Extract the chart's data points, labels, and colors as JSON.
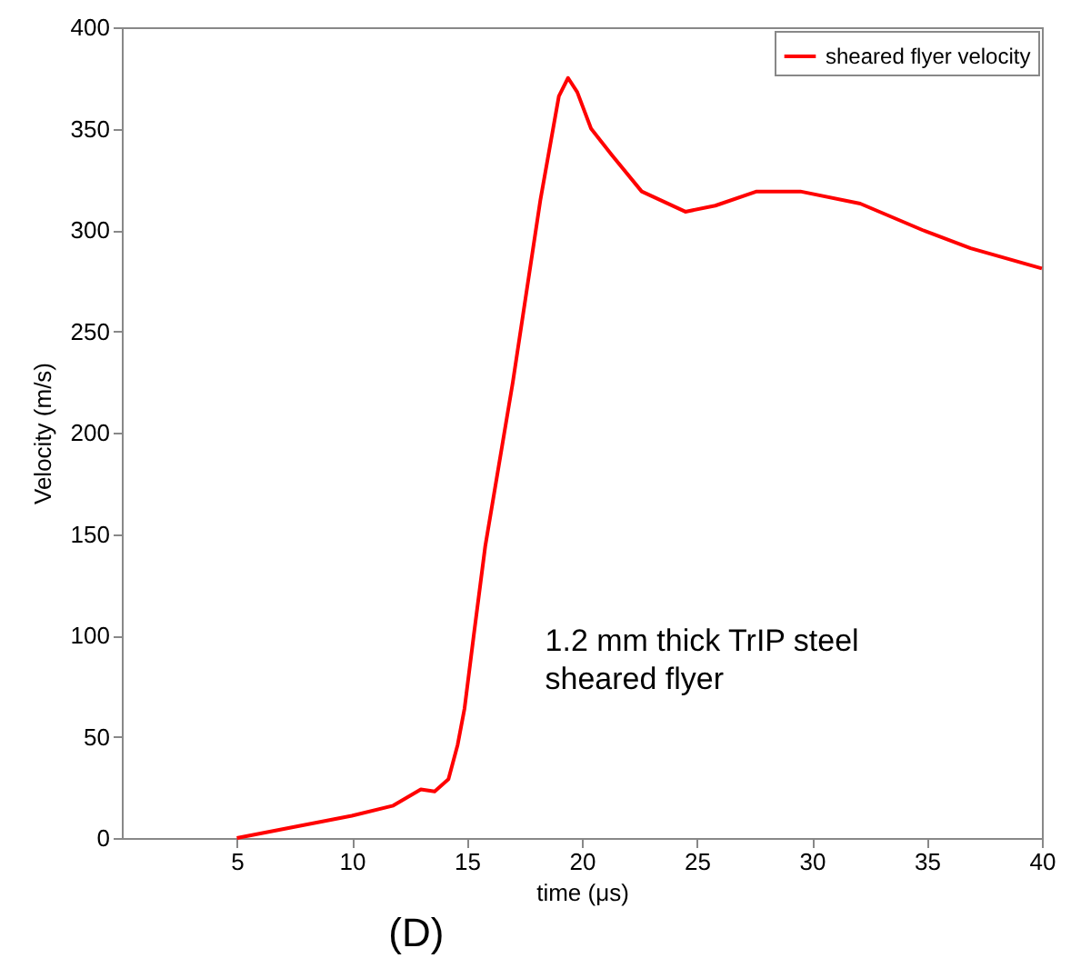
{
  "chart_data": {
    "type": "line",
    "xlabel": "time (μs)",
    "ylabel": "Velocity (m/s)",
    "x": [
      5,
      10,
      11.8,
      13.0,
      13.6,
      14.2,
      14.6,
      14.9,
      15.3,
      15.8,
      17.0,
      18.2,
      19.0,
      19.4,
      19.8,
      20.4,
      21.3,
      22.6,
      24.5,
      25.8,
      27.6,
      29.5,
      32.1,
      34.8,
      36.9,
      40
    ],
    "series": [
      {
        "name": "sheared flyer velocity",
        "color": "#ff0000",
        "values": [
          0,
          11,
          16,
          24,
          23,
          29,
          46,
          64,
          100,
          144,
          225,
          315,
          366,
          375,
          368,
          350,
          337,
          319,
          309,
          312,
          319,
          319,
          313,
          300,
          291,
          281
        ]
      }
    ],
    "xlim": [
      0,
      40
    ],
    "xticks": [
      5,
      10,
      15,
      20,
      25,
      30,
      35,
      40
    ],
    "ylim": [
      0,
      400
    ],
    "yticks": [
      0,
      50,
      100,
      150,
      200,
      250,
      300,
      350,
      400
    ],
    "grid": false,
    "legend": "top right",
    "marker": "none",
    "line_style": "solid",
    "annotations": [
      "1.2 mm thick TrIP steel\nsheared flyer",
      "(D)"
    ]
  }
}
